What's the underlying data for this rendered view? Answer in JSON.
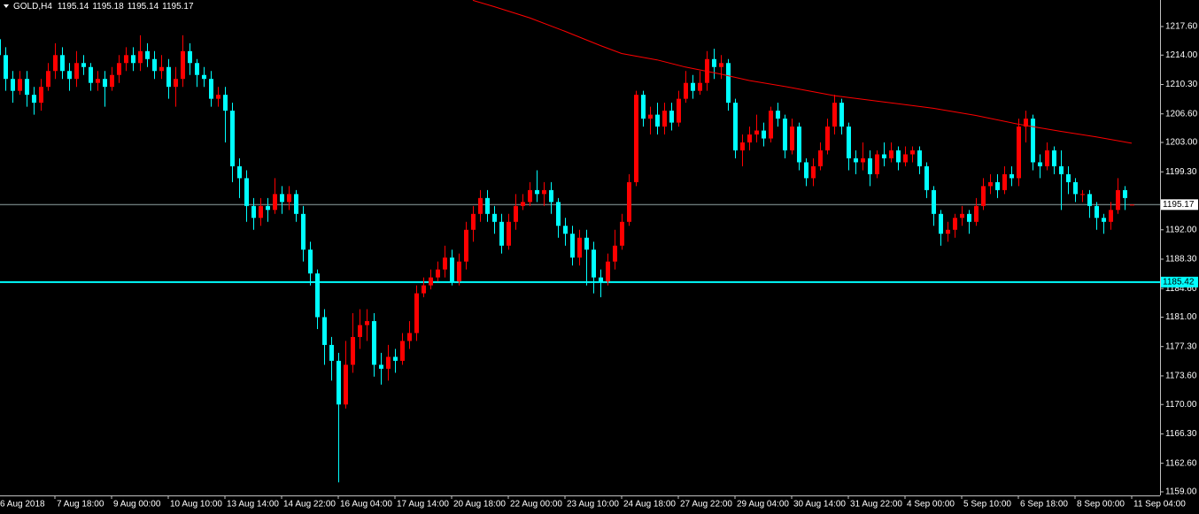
{
  "chart_data": {
    "type": "candlestick",
    "title": "GOLD,H4",
    "up_color": "#ff0000",
    "down_color": "#00ffff",
    "background": "#000000",
    "grid": false,
    "open": [
      1216,
      1214,
      1211,
      1209.5,
      1211,
      1209,
      1208,
      1210,
      1212,
      1214,
      1212,
      1211,
      1213,
      1212.5,
      1210.5,
      1211,
      1210,
      1211.5,
      1213,
      1214,
      1213,
      1214.5,
      1213.5,
      1212,
      1212.5,
      1210,
      1211,
      1214.5,
      1213,
      1211.5,
      1211,
      1208.5,
      1209,
      1207,
      1200,
      1198.5,
      1195,
      1193.5,
      1195,
      1194.5,
      1196.5,
      1195.5,
      1196.5,
      1194,
      1189.5,
      1186.5,
      1181,
      1177.5,
      1175.5,
      1170,
      1175,
      1178.5,
      1180,
      1180.5,
      1175,
      1174.5,
      1176,
      1175.5,
      1178,
      1179,
      1184,
      1185,
      1186,
      1187,
      1188.5,
      1185.5,
      1188,
      1192,
      1194,
      1196,
      1194,
      1193,
      1190,
      1193,
      1195,
      1195.5,
      1197,
      1196.5,
      1197,
      1195.5,
      1192.5,
      1191.5,
      1188.5,
      1191,
      1189.5,
      1186,
      1185.5,
      1188,
      1190,
      1193,
      1198,
      1209,
      1206,
      1206.5,
      1205,
      1207,
      1205.5,
      1208.5,
      1210.5,
      1209.5,
      1210.5,
      1213.5,
      1212.5,
      1213,
      1208,
      1202,
      1203,
      1204,
      1204.5,
      1203.5,
      1207,
      1206,
      1202,
      1205,
      1200.5,
      1198.5,
      1200,
      1202,
      1205,
      1208,
      1205,
      1201,
      1200.5,
      1201,
      1199,
      1201.5,
      1201,
      1202,
      1200.5,
      1201.5,
      1202,
      1200,
      1197,
      1194,
      1191.5,
      1192,
      1193.5,
      1194,
      1193,
      1195,
      1197.5,
      1198,
      1197,
      1199,
      1198.5,
      1205,
      1206,
      1200.5,
      1200,
      1202,
      1200,
      1199,
      1198,
      1196.5,
      1196.5,
      1195,
      1193.5,
      1193,
      1194.5,
      1197,
      1195.14
    ],
    "high": [
      1217,
      1215,
      1212,
      1212,
      1212,
      1210,
      1211,
      1213,
      1215.5,
      1215,
      1213,
      1214.5,
      1214,
      1213,
      1212,
      1212,
      1212.5,
      1214,
      1215,
      1215,
      1216.5,
      1215.5,
      1214.5,
      1214,
      1213.5,
      1212.5,
      1216.5,
      1215.5,
      1213.5,
      1212.5,
      1212,
      1210,
      1210,
      1208,
      1201,
      1199.5,
      1196,
      1196,
      1196,
      1198.5,
      1197.5,
      1197.5,
      1197,
      1195,
      1190.5,
      1187,
      1182,
      1178.5,
      1176.5,
      1178,
      1181.5,
      1182,
      1182,
      1181.5,
      1176.5,
      1177.5,
      1177,
      1179,
      1180.5,
      1185,
      1186,
      1187,
      1188,
      1190,
      1189.5,
      1189,
      1193,
      1195,
      1197,
      1197,
      1195,
      1194,
      1194,
      1196.5,
      1196.5,
      1198,
      1199.5,
      1198,
      1198,
      1196,
      1193.5,
      1192.5,
      1192,
      1192,
      1190.5,
      1187,
      1189,
      1192,
      1194,
      1199,
      1209.5,
      1209.5,
      1207.5,
      1208,
      1208,
      1208,
      1209.5,
      1212,
      1211.5,
      1212,
      1214.5,
      1214.8,
      1214,
      1213.5,
      1208.5,
      1204,
      1205,
      1206.5,
      1205.5,
      1207.5,
      1208,
      1206.5,
      1206,
      1205.5,
      1201,
      1201,
      1203,
      1206,
      1209,
      1208.5,
      1205.5,
      1202,
      1203,
      1202,
      1202,
      1203,
      1203,
      1202.5,
      1202.5,
      1202.5,
      1202.5,
      1200.5,
      1197.5,
      1194.5,
      1193,
      1194,
      1195,
      1194.5,
      1196,
      1198.5,
      1199,
      1199,
      1200,
      1200,
      1206,
      1207,
      1206.5,
      1201.5,
      1203,
      1202.5,
      1202,
      1200,
      1198.5,
      1197,
      1197,
      1195.5,
      1194,
      1195.5,
      1198.5,
      1197.5,
      1195.18
    ],
    "low": [
      1212.5,
      1209.5,
      1208,
      1209,
      1207.5,
      1206.5,
      1207,
      1209.5,
      1211,
      1211,
      1209.5,
      1210,
      1211.5,
      1209.5,
      1209.5,
      1207.5,
      1209.5,
      1210.5,
      1212,
      1212,
      1212,
      1212.5,
      1211,
      1211,
      1208.5,
      1207.5,
      1210,
      1211.5,
      1210,
      1210,
      1207.5,
      1207.5,
      1203,
      1198,
      1196,
      1193,
      1192,
      1192.5,
      1193,
      1194,
      1194,
      1194.5,
      1193,
      1188,
      1185,
      1179.5,
      1175,
      1173,
      1160.2,
      1169.5,
      1174,
      1177,
      1178,
      1173.5,
      1172.5,
      1173,
      1174,
      1175,
      1177,
      1178,
      1183.5,
      1184.5,
      1185.5,
      1186,
      1185,
      1185,
      1187,
      1190.5,
      1193,
      1193,
      1191.5,
      1189,
      1189.5,
      1192,
      1194.5,
      1195,
      1195.5,
      1195,
      1194,
      1191,
      1190,
      1187.5,
      1187.5,
      1185,
      1184,
      1183.5,
      1185,
      1187,
      1189.5,
      1192.5,
      1197.5,
      1205,
      1204,
      1204,
      1204,
      1204.5,
      1205,
      1208,
      1208.5,
      1209,
      1209.5,
      1211,
      1211,
      1207,
      1201,
      1200,
      1202,
      1203,
      1202.5,
      1203,
      1205,
      1201,
      1201.5,
      1199.5,
      1197.5,
      1197.5,
      1199.5,
      1201.5,
      1204,
      1204,
      1199.5,
      1199,
      1199.5,
      1197.5,
      1198.5,
      1200,
      1200.5,
      1199.5,
      1200,
      1200.5,
      1199,
      1196,
      1192.5,
      1190,
      1190.5,
      1191,
      1192.5,
      1191.5,
      1192.5,
      1194.5,
      1196.5,
      1196,
      1196.5,
      1197.5,
      1197.5,
      1203,
      1199.5,
      1198.5,
      1199.5,
      1199,
      1194.5,
      1196.5,
      1195.5,
      1195.5,
      1193.5,
      1192,
      1191.5,
      1192,
      1194,
      1194.5,
      1195.14
    ],
    "close": [
      1214,
      1211,
      1209.5,
      1211,
      1209,
      1208,
      1210,
      1212,
      1214,
      1212,
      1211,
      1213,
      1212.5,
      1210.5,
      1211,
      1210,
      1211.5,
      1213,
      1214,
      1213,
      1214.5,
      1213.5,
      1212,
      1212.5,
      1210,
      1211,
      1214.5,
      1213,
      1211.5,
      1211,
      1208.5,
      1209,
      1207,
      1200,
      1198.5,
      1195,
      1193.5,
      1195,
      1194.5,
      1196.5,
      1195.5,
      1196.5,
      1194,
      1189.5,
      1186.5,
      1181,
      1177.5,
      1175.5,
      1170,
      1175,
      1178.5,
      1180,
      1180.5,
      1175,
      1174.5,
      1176,
      1175.5,
      1178,
      1179,
      1184,
      1185,
      1186,
      1187,
      1188.5,
      1185.5,
      1188,
      1192,
      1194,
      1196,
      1194,
      1193,
      1190,
      1193,
      1195,
      1195.5,
      1197,
      1196.5,
      1197,
      1195.5,
      1192.5,
      1191.5,
      1188.5,
      1191,
      1189.5,
      1186,
      1185.5,
      1188,
      1190,
      1193,
      1198,
      1209,
      1206,
      1206.5,
      1205,
      1207,
      1205.5,
      1208.5,
      1210.5,
      1209.5,
      1210.5,
      1213.5,
      1212.5,
      1213,
      1208,
      1202,
      1203,
      1204,
      1204.5,
      1203.5,
      1207,
      1206,
      1202,
      1205,
      1200.5,
      1198.5,
      1200,
      1202,
      1205,
      1208,
      1205,
      1201,
      1200.5,
      1201,
      1199,
      1201.5,
      1201,
      1202,
      1200.5,
      1201.5,
      1202,
      1200,
      1197,
      1194,
      1191.5,
      1192,
      1193.5,
      1194,
      1193,
      1195,
      1197.5,
      1198,
      1197,
      1199,
      1198.5,
      1205,
      1206,
      1200.5,
      1200,
      1202,
      1200,
      1199,
      1198,
      1196.5,
      1196.5,
      1195,
      1193.5,
      1193,
      1194.5,
      1197,
      1196,
      1195.17
    ],
    "ma": {
      "color": "#ff0000",
      "x": [
        67,
        70,
        75,
        80,
        85,
        88,
        93,
        97,
        102,
        106,
        112,
        118,
        125,
        132,
        138,
        144,
        150,
        155,
        160
      ],
      "values": [
        1220.9,
        1220.1,
        1218.7,
        1217.0,
        1215.2,
        1214.2,
        1213.4,
        1212.5,
        1211.6,
        1210.8,
        1209.9,
        1208.9,
        1208.1,
        1207.3,
        1206.4,
        1205.3,
        1204.4,
        1203.7,
        1202.9
      ]
    },
    "level": {
      "value": 1185.42,
      "color": "#00ffff"
    },
    "bid_line_color": "#8fa3a3",
    "xlim": [
      0.25,
      164
    ],
    "ylim": [
      1158.55,
      1220.94
    ],
    "yticks": [
      {
        "value": 1159,
        "label": "1159.00"
      },
      {
        "value": 1162.6,
        "label": "1162.60"
      },
      {
        "value": 1166.3,
        "label": "1166.30"
      },
      {
        "value": 1170,
        "label": "1170.00"
      },
      {
        "value": 1173.6,
        "label": "1173.60"
      },
      {
        "value": 1177.3,
        "label": "1177.30"
      },
      {
        "value": 1181,
        "label": "1181.00"
      },
      {
        "value": 1184.6,
        "label": "1184.60"
      },
      {
        "value": 1188.3,
        "label": "1188.30"
      },
      {
        "value": 1192,
        "label": "1192.00"
      },
      {
        "value": 1199.3,
        "label": "1199.30"
      },
      {
        "value": 1203,
        "label": "1203.00"
      },
      {
        "value": 1206.6,
        "label": "1206.60"
      },
      {
        "value": 1210.3,
        "label": "1210.30"
      },
      {
        "value": 1214,
        "label": "1214.00"
      },
      {
        "value": 1217.6,
        "label": "1217.60"
      }
    ],
    "xticks": [
      {
        "value": 0,
        "label": "6 Aug 2018"
      },
      {
        "value": 8,
        "label": "7 Aug 18:00"
      },
      {
        "value": 16,
        "label": "9 Aug 00:00"
      },
      {
        "value": 24,
        "label": "10 Aug 10:00"
      },
      {
        "value": 32,
        "label": "13 Aug 14:00"
      },
      {
        "value": 40,
        "label": "14 Aug 22:00"
      },
      {
        "value": 48,
        "label": "16 Aug 04:00"
      },
      {
        "value": 56,
        "label": "17 Aug 14:00"
      },
      {
        "value": 64,
        "label": "20 Aug 18:00"
      },
      {
        "value": 72,
        "label": "22 Aug 00:00"
      },
      {
        "value": 80,
        "label": "23 Aug 10:00"
      },
      {
        "value": 88,
        "label": "24 Aug 18:00"
      },
      {
        "value": 96,
        "label": "27 Aug 22:00"
      },
      {
        "value": 104,
        "label": "29 Aug 04:00"
      },
      {
        "value": 112,
        "label": "30 Aug 14:00"
      },
      {
        "value": 120,
        "label": "31 Aug 22:00"
      },
      {
        "value": 128,
        "label": "4 Sep 00:00"
      },
      {
        "value": 136,
        "label": "5 Sep 10:00"
      },
      {
        "value": 144,
        "label": "6 Sep 18:00"
      },
      {
        "value": 152,
        "label": "8 Sep 00:00"
      },
      {
        "value": 160,
        "label": "11 Sep 04:00"
      }
    ]
  }
}
